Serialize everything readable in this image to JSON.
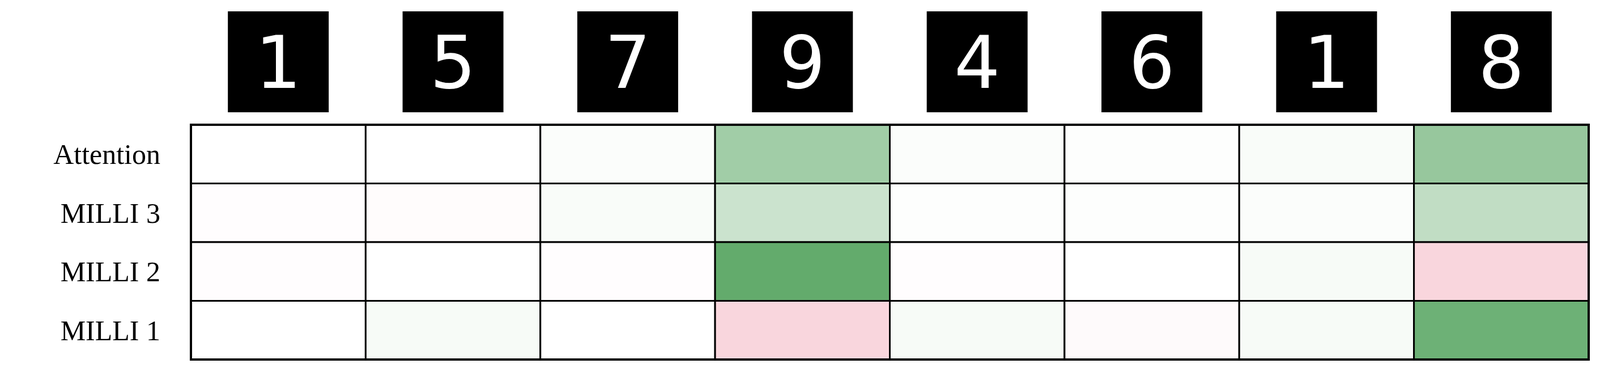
{
  "chart_data": {
    "type": "heatmap",
    "columns": [
      "1",
      "5",
      "7",
      "9",
      "4",
      "6",
      "1",
      "8"
    ],
    "rows": [
      "Attention",
      "MILLI 3",
      "MILLI 2",
      "MILLI 1"
    ],
    "cells": [
      [
        0.0,
        0.0,
        0.02,
        0.45,
        0.02,
        0.01,
        0.03,
        0.5
      ],
      [
        -0.01,
        -0.02,
        0.03,
        0.25,
        0.01,
        0.01,
        0.02,
        0.3
      ],
      [
        -0.01,
        0.0,
        -0.01,
        0.75,
        -0.01,
        0.0,
        0.04,
        -0.25
      ],
      [
        0.0,
        0.04,
        0.0,
        -0.25,
        0.04,
        -0.03,
        0.04,
        0.7
      ]
    ],
    "zlim": [
      -1,
      1
    ],
    "colors": [
      "#e75b77",
      "#ffffff",
      "#2f8f3b"
    ]
  }
}
